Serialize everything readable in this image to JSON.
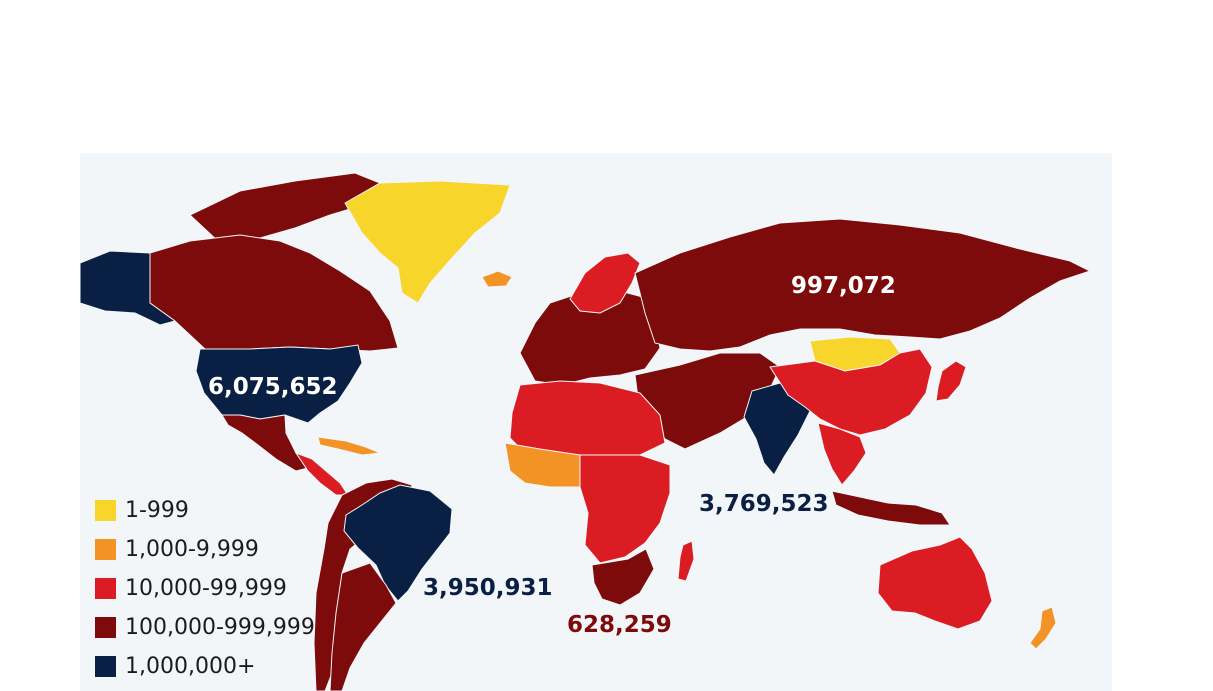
{
  "colors": {
    "tier1": "#f7d52b",
    "tier2": "#f39325",
    "tier3": "#db1c23",
    "tier4": "#7e0b0b",
    "tier5": "#0a1f44",
    "ocean": "#f3f6f9",
    "no_data": "#d8d8d8"
  },
  "legend": [
    {
      "label": "1-999",
      "color": "#f7d52b"
    },
    {
      "label": "1,000-9,999",
      "color": "#f39325"
    },
    {
      "label": "10,000-99,999",
      "color": "#db1c23"
    },
    {
      "label": "100,000-999,999",
      "color": "#7e0b0b"
    },
    {
      "label": "1,000,000+",
      "color": "#0a1f44"
    }
  ],
  "callouts": {
    "usa": {
      "value": "6,075,652",
      "color": "#ffffff"
    },
    "brazil": {
      "value": "3,950,931",
      "color": "#0a1f44"
    },
    "india": {
      "value": "3,769,523",
      "color": "#0a1f44"
    },
    "russia": {
      "value": "997,072",
      "color": "#ffffff"
    },
    "south_africa": {
      "value": "628,259",
      "color": "#7e0b0b"
    }
  },
  "regions": [
    {
      "name": "greenland",
      "tier": "tier1"
    },
    {
      "name": "alaska",
      "tier": "tier5"
    },
    {
      "name": "canada",
      "tier": "tier4"
    },
    {
      "name": "united-states",
      "tier": "tier5"
    },
    {
      "name": "mexico",
      "tier": "tier4"
    },
    {
      "name": "central-america",
      "tier": "tier3"
    },
    {
      "name": "caribbean",
      "tier": "tier2"
    },
    {
      "name": "south-america-west",
      "tier": "tier4"
    },
    {
      "name": "brazil",
      "tier": "tier5"
    },
    {
      "name": "argentina",
      "tier": "tier4"
    },
    {
      "name": "europe",
      "tier": "tier4"
    },
    {
      "name": "scandinavia",
      "tier": "tier3"
    },
    {
      "name": "russia",
      "tier": "tier4"
    },
    {
      "name": "middle-east",
      "tier": "tier4"
    },
    {
      "name": "north-africa",
      "tier": "tier3"
    },
    {
      "name": "west-africa",
      "tier": "tier2"
    },
    {
      "name": "central-africa",
      "tier": "tier3"
    },
    {
      "name": "southern-africa",
      "tier": "tier4"
    },
    {
      "name": "madagascar",
      "tier": "tier3"
    },
    {
      "name": "india",
      "tier": "tier5"
    },
    {
      "name": "mongolia",
      "tier": "tier1"
    },
    {
      "name": "china",
      "tier": "tier3"
    },
    {
      "name": "southeast-asia",
      "tier": "tier3"
    },
    {
      "name": "indonesia",
      "tier": "tier4"
    },
    {
      "name": "japan",
      "tier": "tier3"
    },
    {
      "name": "australia",
      "tier": "tier3"
    },
    {
      "name": "new-zealand",
      "tier": "tier2"
    },
    {
      "name": "iceland",
      "tier": "tier2"
    }
  ]
}
